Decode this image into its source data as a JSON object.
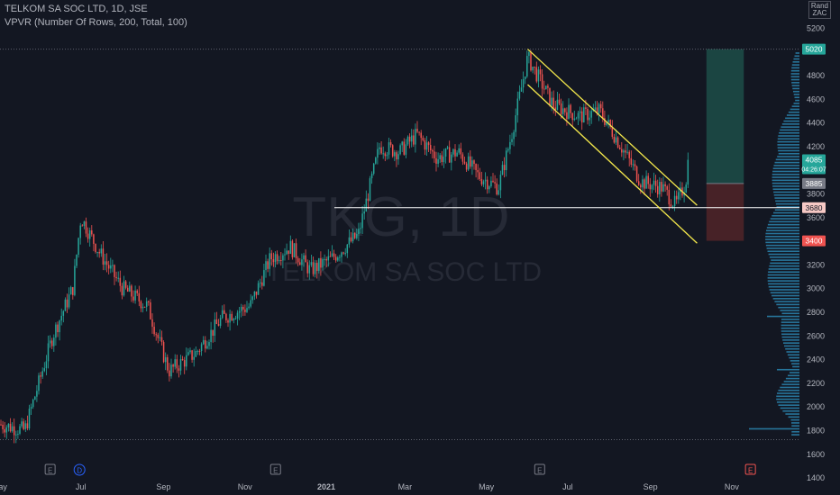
{
  "header": {
    "title": "TELKOM SA SOC LTD, 1D, JSE",
    "indicator": "VPVR (Number Of Rows, 200, Total, 100)",
    "currency_top": "Rand",
    "currency_bottom": "ZAC"
  },
  "watermark": {
    "symbol": "TKG, 1D",
    "name": "TELKOM SA SOC LTD"
  },
  "colors": {
    "background": "#131722",
    "up": "#26a69a",
    "down": "#ef5350",
    "channel": "#f5e94c",
    "horizontal_line": "#ffffff",
    "volume_profile": "#2a7fa8",
    "target_zone": "#1d4d48",
    "stop_zone": "#4e2428"
  },
  "chart_data": {
    "type": "candlestick",
    "ylim": [
      1400,
      5250
    ],
    "y_ticks": [
      1400,
      1600,
      1800,
      2000,
      2200,
      2400,
      2600,
      2800,
      3000,
      3200,
      3400,
      3600,
      3800,
      4000,
      4200,
      4400,
      4600,
      4800,
      5000,
      5200
    ],
    "x_ticks": [
      "May",
      "Jul",
      "Sep",
      "Nov",
      "2021",
      "Mar",
      "May",
      "Jul",
      "Sep",
      "Nov"
    ],
    "price_labels": [
      {
        "value": 5020,
        "text": "5020",
        "color": "#26a69a"
      },
      {
        "value": 4085,
        "text": "4085",
        "color": "#26a69a",
        "sub": "04:26:07"
      },
      {
        "value": 3885,
        "text": "3885",
        "color": "#787b86"
      },
      {
        "value": 3680,
        "text": "3680",
        "color": "#f7c9c5"
      },
      {
        "value": 3400,
        "text": "3400",
        "color": "#ef5350"
      }
    ],
    "dotted_levels": [
      5020,
      1720
    ],
    "horizontal_level": 3680,
    "last_price": 4085,
    "close_path": [
      [
        "2020-05-01",
        1850
      ],
      [
        "2020-05-20",
        1800
      ],
      [
        "2020-06-10",
        2600
      ],
      [
        "2020-06-25",
        3000
      ],
      [
        "2020-07-01",
        3600
      ],
      [
        "2020-07-15",
        3300
      ],
      [
        "2020-08-01",
        3000
      ],
      [
        "2020-08-20",
        2850
      ],
      [
        "2020-09-05",
        2300
      ],
      [
        "2020-09-25",
        2450
      ],
      [
        "2020-10-15",
        2750
      ],
      [
        "2020-11-05",
        2850
      ],
      [
        "2020-11-20",
        3250
      ],
      [
        "2020-12-05",
        3350
      ],
      [
        "2020-12-20",
        3150
      ],
      [
        "2021-01-05",
        3250
      ],
      [
        "2021-01-25",
        3450
      ],
      [
        "2021-02-10",
        4200
      ],
      [
        "2021-02-25",
        4150
      ],
      [
        "2021-03-10",
        4300
      ],
      [
        "2021-03-25",
        4100
      ],
      [
        "2021-04-10",
        4150
      ],
      [
        "2021-04-25",
        3950
      ],
      [
        "2021-05-10",
        3850
      ],
      [
        "2021-05-20",
        4300
      ],
      [
        "2021-06-01",
        4950
      ],
      [
        "2021-06-20",
        4550
      ],
      [
        "2021-07-10",
        4450
      ],
      [
        "2021-07-25",
        4500
      ],
      [
        "2021-08-10",
        4200
      ],
      [
        "2021-08-25",
        3900
      ],
      [
        "2021-09-10",
        3850
      ],
      [
        "2021-09-20",
        3700
      ],
      [
        "2021-09-27",
        3880
      ],
      [
        "2021-09-30",
        4085
      ]
    ],
    "channel_upper": [
      [
        "2021-06-01",
        5020
      ],
      [
        "2021-10-06",
        3700
      ]
    ],
    "channel_lower": [
      [
        "2021-06-01",
        4720
      ],
      [
        "2021-10-06",
        3380
      ]
    ],
    "position": {
      "start": "2021-10-13",
      "end": "2021-11-10",
      "entry": 3885,
      "target": 5020,
      "stop": 3400
    },
    "earnings_markers": [
      {
        "date": "2020-06-08",
        "label": "E"
      },
      {
        "date": "2020-06-30",
        "label": "D"
      },
      {
        "date": "2020-11-24",
        "label": "E"
      },
      {
        "date": "2021-06-10",
        "label": "E"
      },
      {
        "date": "2021-11-15",
        "label": "E"
      }
    ]
  }
}
